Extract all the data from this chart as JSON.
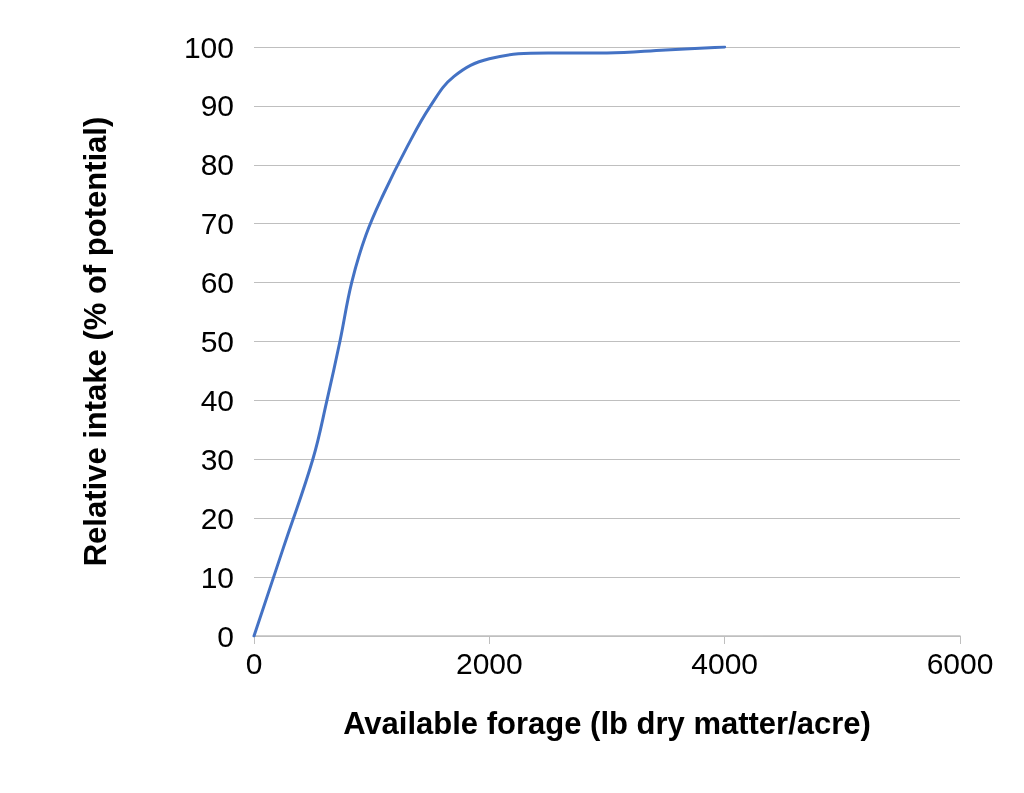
{
  "chart_data": {
    "type": "line",
    "xlabel": "Available forage (lb dry matter/acre)",
    "ylabel": "Relative intake (% of potential)",
    "x": [
      0,
      250,
      500,
      620,
      730,
      830,
      950,
      1100,
      1300,
      1500,
      1700,
      2000,
      2500,
      3000,
      3500,
      4000
    ],
    "series": [
      {
        "color": "#4472c4",
        "values": [
          0,
          15,
          30,
          40,
          50,
          60,
          68,
          75,
          83,
          90,
          95,
          98,
          99,
          99,
          99.5,
          100
        ]
      }
    ],
    "xlim": [
      0,
      6000
    ],
    "xticks": [
      0,
      2000,
      4000,
      6000
    ],
    "ylim": [
      0,
      100
    ],
    "yticks": [
      0,
      10,
      20,
      30,
      40,
      50,
      60,
      70,
      80,
      90,
      100
    ],
    "grid": "y",
    "marker": "none",
    "line_style": "solid"
  }
}
